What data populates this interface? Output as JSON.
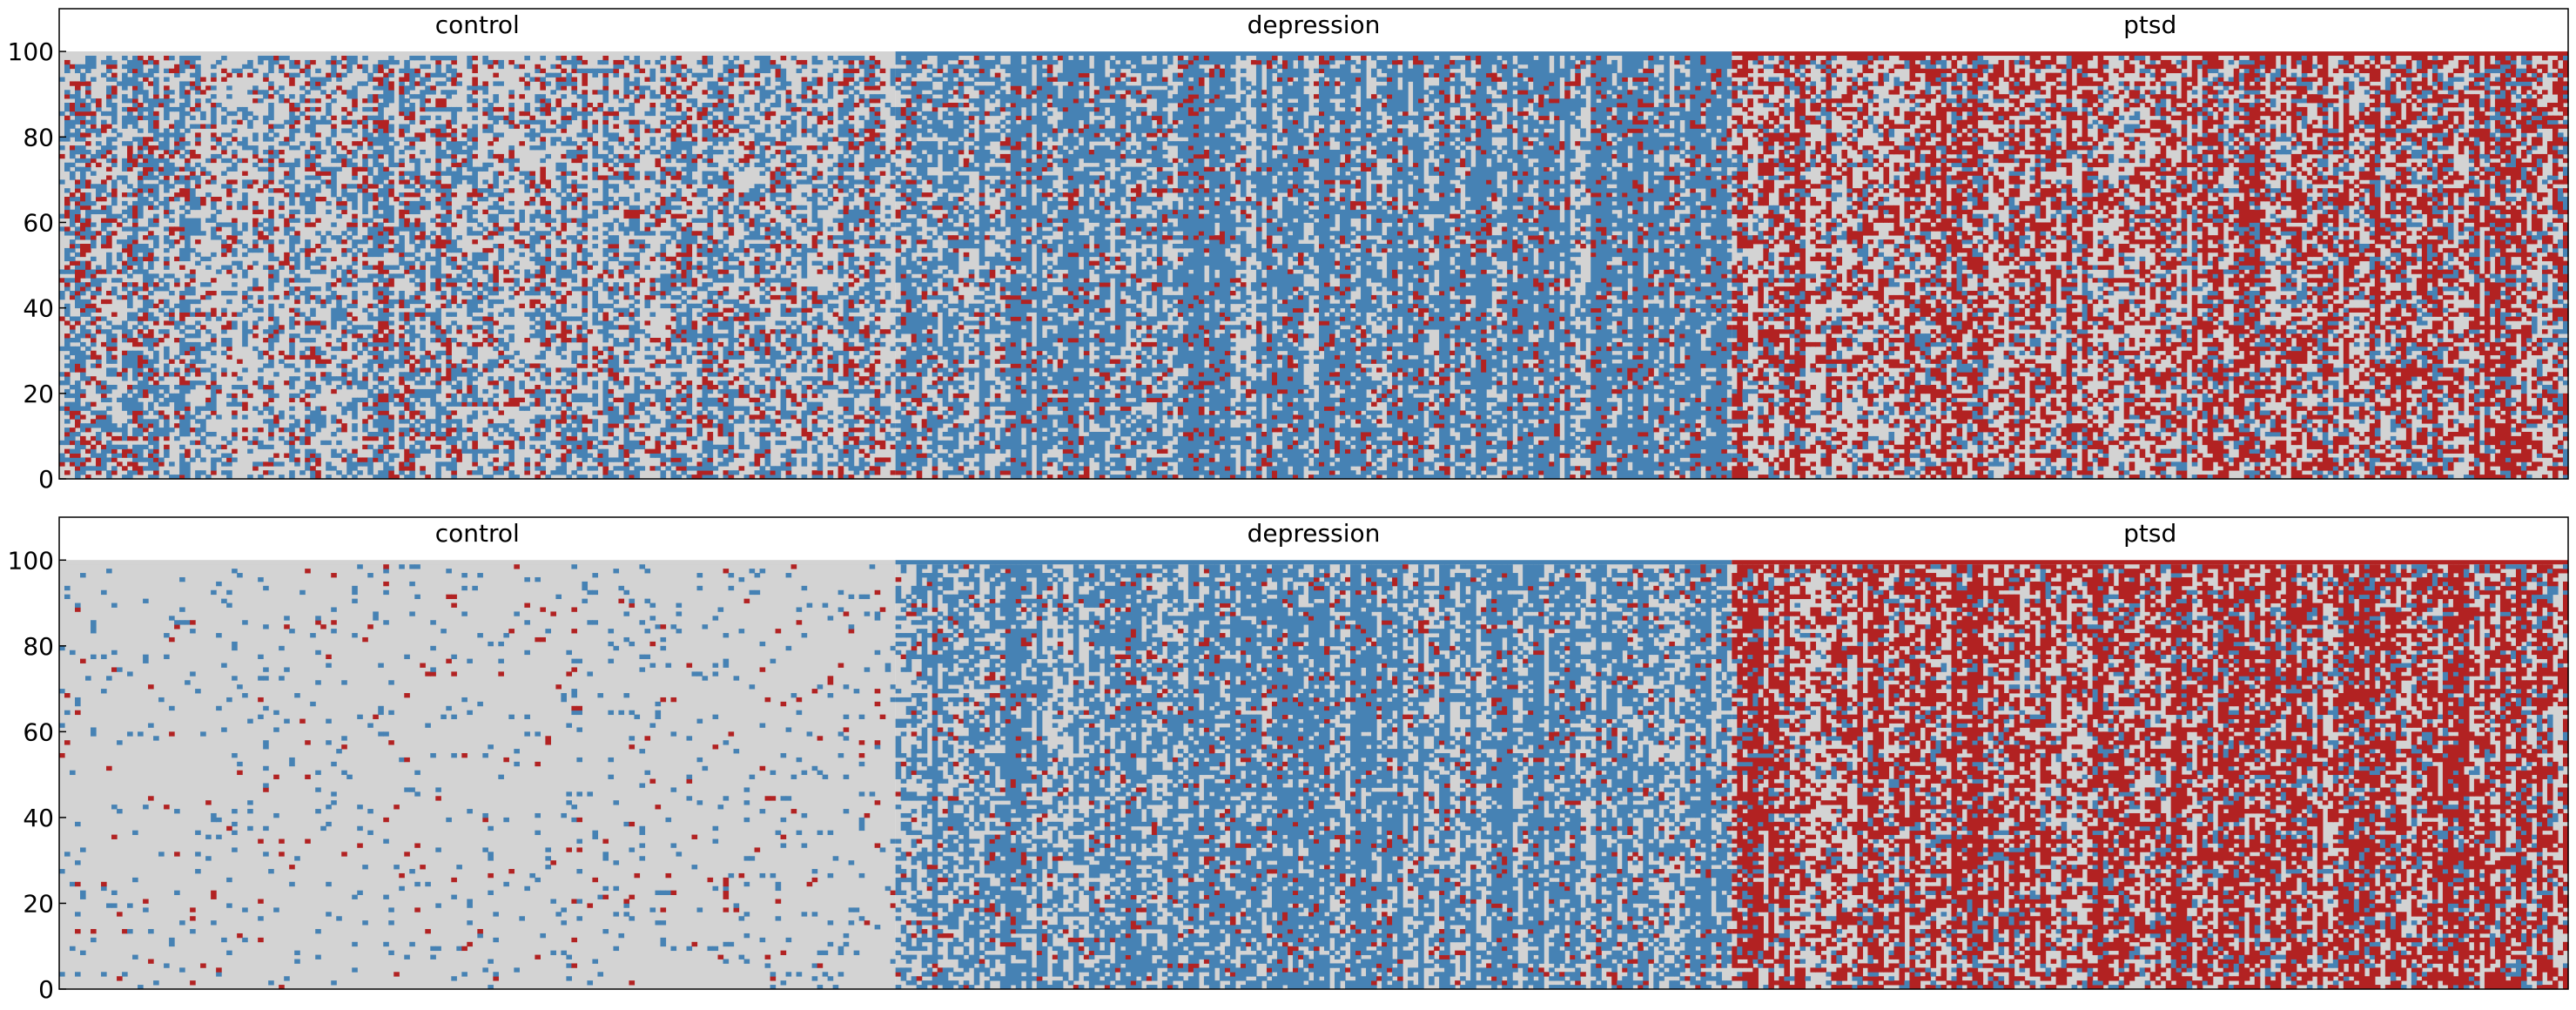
{
  "chart_data": [
    {
      "type": "heatmap",
      "panel": "top",
      "title": "",
      "xlabel": "",
      "ylabel": "",
      "ylim": [
        0,
        110
      ],
      "yticks": [
        0,
        20,
        40,
        60,
        80,
        100
      ],
      "grid": false,
      "groups": [
        {
          "label": "control",
          "baseline": "#d3d3d3",
          "density": {
            "red": 0.14,
            "blue": 0.34
          }
        },
        {
          "label": "depression",
          "baseline": "#4682b4",
          "density": {
            "red": 0.1,
            "blue": 0.6
          }
        },
        {
          "label": "ptsd",
          "baseline": "#b22222",
          "density": {
            "red": 0.42,
            "blue": 0.18
          }
        }
      ],
      "colors": {
        "neutral": "#d3d3d3",
        "blue": "#4682b4",
        "red": "#b22222"
      }
    },
    {
      "type": "heatmap",
      "panel": "bottom",
      "title": "",
      "xlabel": "",
      "ylabel": "",
      "ylim": [
        0,
        110
      ],
      "yticks": [
        0,
        20,
        40,
        60,
        80,
        100
      ],
      "grid": false,
      "groups": [
        {
          "label": "control",
          "baseline": "#d3d3d3",
          "density": {
            "red": 0.012,
            "blue": 0.04
          }
        },
        {
          "label": "depression",
          "baseline": "#4682b4",
          "density": {
            "red": 0.06,
            "blue": 0.58
          }
        },
        {
          "label": "ptsd",
          "baseline": "#b22222",
          "density": {
            "red": 0.5,
            "blue": 0.14
          }
        }
      ],
      "colors": {
        "neutral": "#d3d3d3",
        "blue": "#4682b4",
        "red": "#b22222"
      }
    }
  ]
}
